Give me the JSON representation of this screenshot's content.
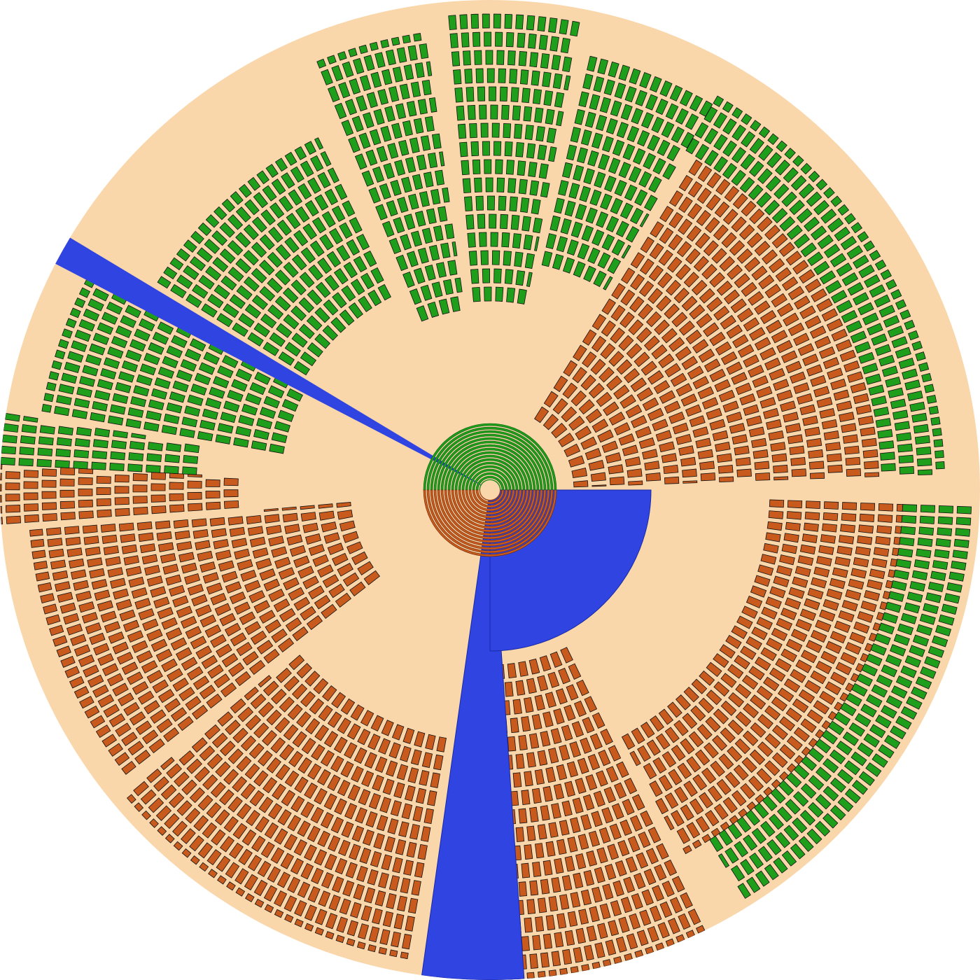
{
  "colors": {
    "background_disc": "#fad7ab",
    "green_block": "#1f9e1c",
    "green_dark": "#0c5e0c",
    "brown_block": "#c85a1d",
    "brown_dark": "#6b2a08",
    "blue_block": "#2f44e0",
    "blue_dark": "#182aa8",
    "outline": "#111111",
    "light_lime": "#9bcf3a"
  },
  "icons": [
    "green-block-icon",
    "brown-block-icon",
    "blue-block-icon"
  ],
  "chart_data": {
    "type": "radial-block-diagram",
    "description_of_marks": "",
    "sectors": [
      {
        "color": "green",
        "a0": 190,
        "a1": 208,
        "r0": 300,
        "r1": 650
      },
      {
        "color": "green",
        "a0": 212,
        "a1": 244,
        "r0": 310,
        "r1": 560
      },
      {
        "color": "green",
        "a0": 248,
        "a1": 262,
        "r0": 260,
        "r1": 660
      },
      {
        "color": "green",
        "a0": 265,
        "a1": 281,
        "r0": 270,
        "r1": 680
      },
      {
        "color": "green",
        "a0": 283,
        "a1": 300,
        "r0": 330,
        "r1": 640
      },
      {
        "color": "brown",
        "a0": 302,
        "a1": 358,
        "r0": 120,
        "r1": 560
      },
      {
        "color": "green",
        "a0": 300,
        "a1": 358,
        "r0": 560,
        "r1": 650
      },
      {
        "color": "brown",
        "a0": 2,
        "a1": 62,
        "r0": 400,
        "r1": 590
      },
      {
        "color": "green",
        "a0": 2,
        "a1": 58,
        "r0": 590,
        "r1": 690
      },
      {
        "color": "brown",
        "a0": 64,
        "a1": 88,
        "r0": 250,
        "r1": 700
      },
      {
        "color": "blue",
        "a0": 86,
        "a1": 98,
        "r0": 0,
        "r1": 700
      },
      {
        "color": "blue",
        "a0": 0,
        "a1": 90,
        "r0": 0,
        "r1": 230
      },
      {
        "color": "brown",
        "a0": 100,
        "a1": 140,
        "r0": 360,
        "r1": 680
      },
      {
        "color": "brown",
        "a0": 142,
        "a1": 175,
        "r0": 200,
        "r1": 660
      },
      {
        "color": "brown",
        "a0": 176,
        "a1": 183,
        "r0": 360,
        "r1": 700
      },
      {
        "color": "green",
        "a0": 183,
        "a1": 189,
        "r0": 420,
        "r1": 700
      }
    ],
    "wedges": [
      {
        "color": "blue",
        "a0": 207.5,
        "a1": 211,
        "r0": 0,
        "r1": 700
      }
    ]
  }
}
